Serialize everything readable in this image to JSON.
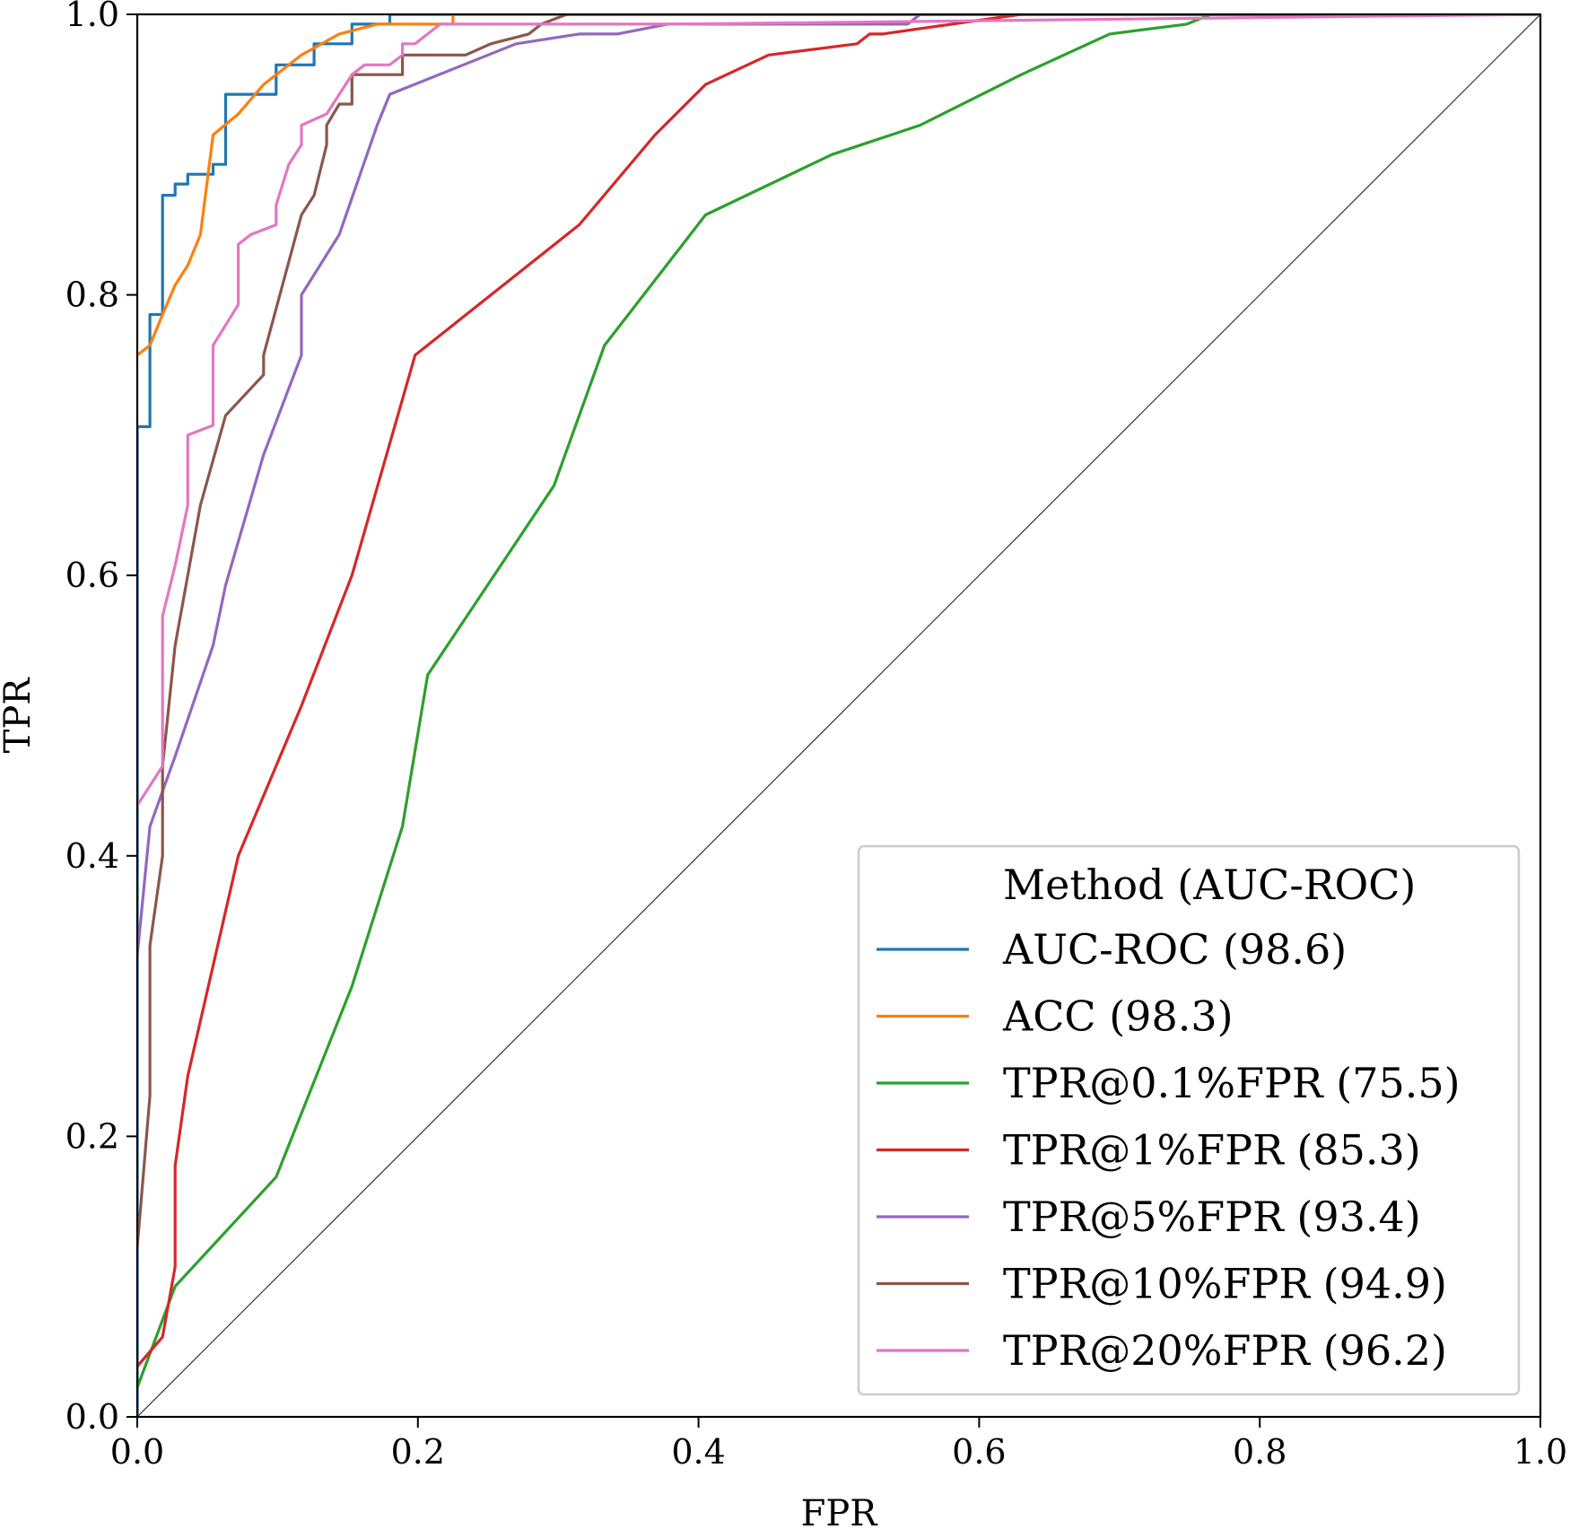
{
  "chart_data": {
    "type": "line",
    "title": "",
    "xlabel": "FPR",
    "ylabel": "TPR",
    "xlim": [
      0,
      1
    ],
    "ylim": [
      0,
      1
    ],
    "xticks": [
      "0.0",
      "0.2",
      "0.4",
      "0.6",
      "0.8",
      "1.0"
    ],
    "yticks": [
      "0.0",
      "0.2",
      "0.4",
      "0.6",
      "0.8",
      "1.0"
    ],
    "grid": false,
    "legend": {
      "title": "Method (AUC-ROC)",
      "placement": "lower-right"
    },
    "diagonal": {
      "x": [
        0,
        1
      ],
      "y": [
        0,
        1
      ],
      "color": "#333333"
    },
    "series": [
      {
        "name": "AUC-ROC (98.6)",
        "color": "#1f77b4",
        "x": [
          0.0,
          0.0,
          0.009,
          0.009,
          0.018,
          0.018,
          0.027,
          0.027,
          0.036,
          0.036,
          0.054,
          0.054,
          0.063,
          0.063,
          0.099,
          0.099,
          0.126,
          0.126,
          0.153,
          0.153,
          0.18,
          0.18,
          1.0
        ],
        "y": [
          0.0,
          0.706,
          0.706,
          0.786,
          0.786,
          0.871,
          0.871,
          0.879,
          0.879,
          0.886,
          0.886,
          0.893,
          0.893,
          0.943,
          0.943,
          0.964,
          0.964,
          0.979,
          0.979,
          0.993,
          0.993,
          1.0,
          1.0
        ]
      },
      {
        "name": "ACC (98.3)",
        "color": "#ff7f0e",
        "x": [
          0.0,
          0.009,
          0.009,
          0.018,
          0.018,
          0.027,
          0.027,
          0.036,
          0.036,
          0.045,
          0.045,
          0.054,
          0.054,
          0.072,
          0.072,
          0.09,
          0.09,
          0.117,
          0.117,
          0.144,
          0.144,
          0.171,
          0.171,
          0.225,
          0.225,
          1.0
        ],
        "y": [
          0.757,
          0.764,
          0.764,
          0.786,
          0.786,
          0.807,
          0.807,
          0.821,
          0.821,
          0.843,
          0.843,
          0.914,
          0.914,
          0.929,
          0.929,
          0.95,
          0.95,
          0.971,
          0.971,
          0.986,
          0.986,
          0.993,
          0.993,
          0.993,
          1.0,
          1.0
        ]
      },
      {
        "name": "TPR@0.1%FPR (75.5)",
        "color": "#2ca02c",
        "x": [
          0.0,
          0.027,
          0.099,
          0.153,
          0.189,
          0.207,
          0.297,
          0.333,
          0.405,
          0.495,
          0.558,
          0.63,
          0.693,
          0.748,
          0.765,
          1.0
        ],
        "y": [
          0.021,
          0.093,
          0.171,
          0.307,
          0.421,
          0.529,
          0.664,
          0.764,
          0.857,
          0.9,
          0.921,
          0.957,
          0.986,
          0.993,
          1.0,
          1.0
        ]
      },
      {
        "name": "TPR@1%FPR (85.3)",
        "color": "#d62728",
        "x": [
          0.0,
          0.018,
          0.027,
          0.027,
          0.036,
          0.072,
          0.117,
          0.153,
          0.198,
          0.315,
          0.369,
          0.405,
          0.45,
          0.513,
          0.522,
          0.531,
          0.63,
          1.0
        ],
        "y": [
          0.036,
          0.057,
          0.107,
          0.179,
          0.243,
          0.4,
          0.507,
          0.6,
          0.757,
          0.85,
          0.914,
          0.95,
          0.971,
          0.979,
          0.986,
          0.986,
          1.0,
          1.0
        ]
      },
      {
        "name": "TPR@5%FPR (93.4)",
        "color": "#9467bd",
        "x": [
          0.0,
          0.009,
          0.027,
          0.054,
          0.063,
          0.09,
          0.117,
          0.117,
          0.144,
          0.171,
          0.18,
          0.27,
          0.315,
          0.342,
          0.378,
          0.549,
          0.558,
          1.0
        ],
        "y": [
          0.329,
          0.421,
          0.471,
          0.55,
          0.593,
          0.686,
          0.757,
          0.8,
          0.843,
          0.921,
          0.943,
          0.979,
          0.986,
          0.986,
          0.993,
          0.993,
          1.0,
          1.0
        ]
      },
      {
        "name": "TPR@10%FPR (94.9)",
        "color": "#8c564b",
        "x": [
          0.0,
          0.009,
          0.009,
          0.018,
          0.018,
          0.027,
          0.045,
          0.063,
          0.09,
          0.09,
          0.117,
          0.126,
          0.135,
          0.135,
          0.144,
          0.153,
          0.153,
          0.189,
          0.189,
          0.234,
          0.252,
          0.279,
          0.288,
          0.306,
          1.0
        ],
        "y": [
          0.121,
          0.229,
          0.336,
          0.4,
          0.464,
          0.55,
          0.65,
          0.714,
          0.743,
          0.757,
          0.857,
          0.871,
          0.907,
          0.921,
          0.936,
          0.936,
          0.957,
          0.957,
          0.971,
          0.971,
          0.979,
          0.986,
          0.993,
          1.0,
          1.0
        ]
      },
      {
        "name": "TPR@20%FPR (96.2)",
        "color": "#e377c2",
        "x": [
          0.0,
          0.018,
          0.018,
          0.027,
          0.036,
          0.036,
          0.054,
          0.054,
          0.072,
          0.072,
          0.081,
          0.099,
          0.099,
          0.108,
          0.117,
          0.117,
          0.135,
          0.153,
          0.162,
          0.171,
          0.18,
          0.189,
          0.189,
          0.198,
          0.216,
          0.387,
          1.0
        ],
        "y": [
          0.436,
          0.464,
          0.571,
          0.607,
          0.65,
          0.7,
          0.707,
          0.764,
          0.793,
          0.836,
          0.843,
          0.85,
          0.864,
          0.893,
          0.907,
          0.921,
          0.929,
          0.957,
          0.964,
          0.964,
          0.964,
          0.971,
          0.979,
          0.979,
          0.993,
          0.993,
          1.0
        ]
      }
    ]
  }
}
